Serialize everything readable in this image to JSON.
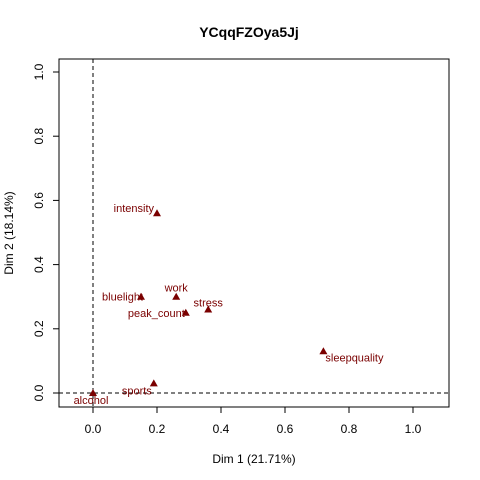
{
  "chart_data": {
    "type": "scatter",
    "title": "YCqqFZOya5Jj",
    "xlabel": "Dim 1 (21.71%)",
    "ylabel": "Dim 2 (18.14%)",
    "xlim": [
      -0.1,
      1.1
    ],
    "ylim": [
      -0.05,
      1.05
    ],
    "x_ticks": [
      "0.0",
      "0.2",
      "0.4",
      "0.6",
      "0.8",
      "1.0"
    ],
    "y_ticks": [
      "0.0",
      "0.2",
      "0.4",
      "0.6",
      "0.8",
      "1.0"
    ],
    "reference_lines": {
      "x": 0,
      "y": 0,
      "style": "dashed"
    },
    "grid": false,
    "marker": "filled-triangle",
    "point_color": "#7a0000",
    "label_color": "#7a0000",
    "points": [
      {
        "label": "intensity",
        "x": 0.2,
        "y": 0.56
      },
      {
        "label": "work",
        "x": 0.26,
        "y": 0.3
      },
      {
        "label": "bluelight",
        "x": 0.15,
        "y": 0.3
      },
      {
        "label": "stress",
        "x": 0.36,
        "y": 0.26
      },
      {
        "label": "peak_count",
        "x": 0.29,
        "y": 0.25
      },
      {
        "label": "sleepquality",
        "x": 0.72,
        "y": 0.13
      },
      {
        "label": "sports",
        "x": 0.19,
        "y": 0.03
      },
      {
        "label": "alcohol",
        "x": 0.0,
        "y": 0.0
      }
    ]
  }
}
